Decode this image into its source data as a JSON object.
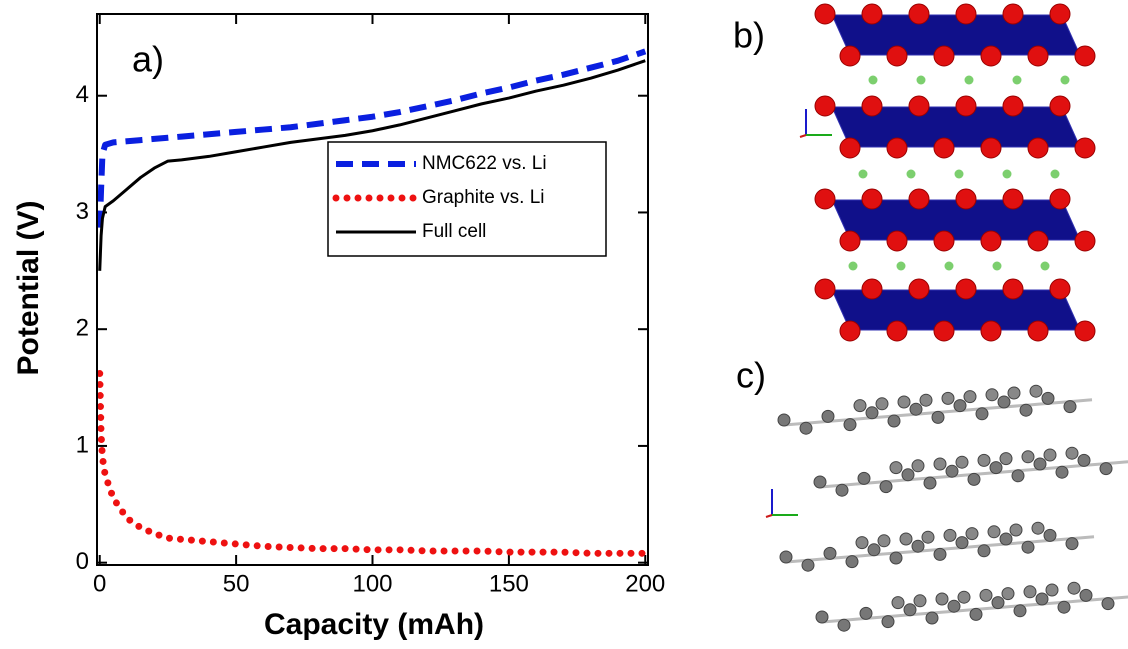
{
  "chart_data": {
    "type": "line",
    "annotation": "a)",
    "x_label": "Capacity (mAh)",
    "y_label": "Potential (V)",
    "x": [
      0,
      0.5,
      1,
      2,
      5,
      10,
      15,
      20,
      25,
      30,
      40,
      50,
      60,
      70,
      80,
      90,
      100,
      110,
      120,
      130,
      140,
      150,
      160,
      170,
      180,
      190,
      200
    ],
    "series": [
      {
        "name": "NMC622 vs. Li",
        "color": "#0a1fe0",
        "style": "dashed",
        "values": [
          2.87,
          3.2,
          3.5,
          3.58,
          3.6,
          3.61,
          3.62,
          3.63,
          3.64,
          3.65,
          3.67,
          3.69,
          3.71,
          3.73,
          3.76,
          3.79,
          3.82,
          3.86,
          3.91,
          3.96,
          4.02,
          4.07,
          4.13,
          4.18,
          4.24,
          4.3,
          4.38
        ]
      },
      {
        "name": "Graphite vs. Li",
        "color": "#ee1111",
        "style": "dotted",
        "values": [
          1.62,
          1.1,
          0.9,
          0.75,
          0.55,
          0.38,
          0.3,
          0.25,
          0.21,
          0.2,
          0.18,
          0.16,
          0.14,
          0.13,
          0.12,
          0.12,
          0.11,
          0.11,
          0.1,
          0.1,
          0.1,
          0.09,
          0.09,
          0.09,
          0.08,
          0.08,
          0.08
        ]
      },
      {
        "name": "Full cell",
        "color": "#000000",
        "style": "solid",
        "values": [
          2.5,
          2.8,
          2.95,
          3.05,
          3.1,
          3.2,
          3.3,
          3.38,
          3.44,
          3.45,
          3.48,
          3.52,
          3.56,
          3.6,
          3.63,
          3.66,
          3.7,
          3.75,
          3.81,
          3.87,
          3.93,
          3.98,
          4.04,
          4.09,
          4.15,
          4.22,
          4.3
        ]
      }
    ],
    "xlim": [
      -1,
      201
    ],
    "xticks": [
      0,
      50,
      100,
      150,
      200
    ],
    "ylim": [
      -0.02,
      4.7
    ],
    "yticks": [
      0,
      1,
      2,
      3,
      4
    ],
    "legend": "upper right"
  },
  "figure_labels": {
    "b": "b)",
    "c": "c)"
  }
}
